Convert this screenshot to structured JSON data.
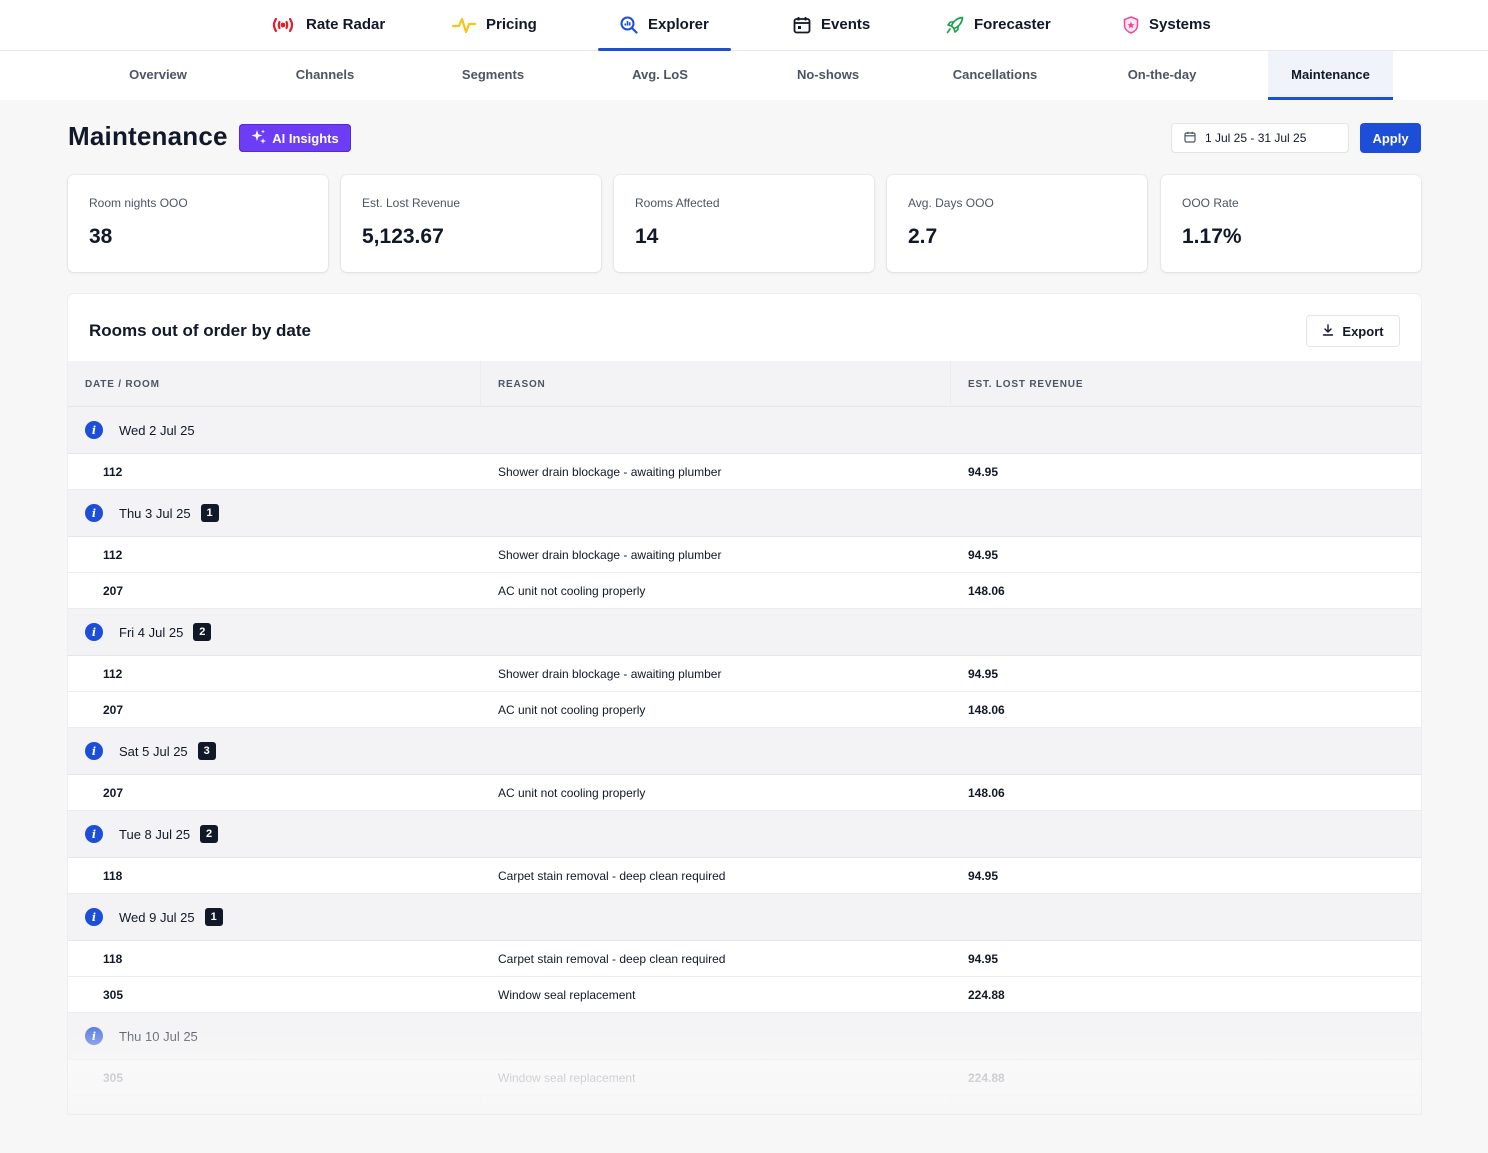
{
  "topnav": {
    "items": [
      {
        "label": "Rate Radar",
        "icon": "radar-icon",
        "color": "#e11d2e"
      },
      {
        "label": "Pricing",
        "icon": "pulse-icon",
        "color": "#f5c518"
      },
      {
        "label": "Explorer",
        "icon": "search-chart-icon",
        "color": "#1d4ed8",
        "active": true
      },
      {
        "label": "Events",
        "icon": "calendar-icon",
        "color": "#111827"
      },
      {
        "label": "Forecaster",
        "icon": "rocket-icon",
        "color": "#16a34a"
      },
      {
        "label": "Systems",
        "icon": "shield-icon",
        "color": "#ec4899"
      }
    ]
  },
  "subnav": {
    "items": [
      {
        "label": "Overview"
      },
      {
        "label": "Channels"
      },
      {
        "label": "Segments"
      },
      {
        "label": "Avg. LoS"
      },
      {
        "label": "No-shows"
      },
      {
        "label": "Cancellations"
      },
      {
        "label": "On-the-day"
      },
      {
        "label": "Maintenance",
        "active": true
      }
    ]
  },
  "header": {
    "title": "Maintenance",
    "ai_label": "AI Insights",
    "date_range": "1 Jul 25 - 31 Jul 25",
    "apply_label": "Apply"
  },
  "kpis": [
    {
      "label": "Room nights OOO",
      "value": "38"
    },
    {
      "label": "Est. Lost Revenue",
      "value": "5,123.67"
    },
    {
      "label": "Rooms Affected",
      "value": "14"
    },
    {
      "label": "Avg. Days OOO",
      "value": "2.7"
    },
    {
      "label": "OOO Rate",
      "value": "1.17%"
    }
  ],
  "table": {
    "title": "Rooms out of order by date",
    "export_label": "Export",
    "columns": [
      "DATE / ROOM",
      "REASON",
      "EST. LOST REVENUE"
    ],
    "groups": [
      {
        "date": "Wed 2 Jul 25",
        "badge": "",
        "rows": [
          {
            "room": "112",
            "reason": "Shower drain blockage - awaiting plumber",
            "revenue": "94.95"
          }
        ]
      },
      {
        "date": "Thu 3 Jul 25",
        "badge": "1",
        "rows": [
          {
            "room": "112",
            "reason": "Shower drain blockage - awaiting plumber",
            "revenue": "94.95"
          },
          {
            "room": "207",
            "reason": "AC unit not cooling properly",
            "revenue": "148.06"
          }
        ]
      },
      {
        "date": "Fri 4 Jul 25",
        "badge": "2",
        "rows": [
          {
            "room": "112",
            "reason": "Shower drain blockage - awaiting plumber",
            "revenue": "94.95"
          },
          {
            "room": "207",
            "reason": "AC unit not cooling properly",
            "revenue": "148.06"
          }
        ]
      },
      {
        "date": "Sat 5 Jul 25",
        "badge": "3",
        "rows": [
          {
            "room": "207",
            "reason": "AC unit not cooling properly",
            "revenue": "148.06"
          }
        ]
      },
      {
        "date": "Tue 8 Jul 25",
        "badge": "2",
        "rows": [
          {
            "room": "118",
            "reason": "Carpet stain removal - deep clean required",
            "revenue": "94.95"
          }
        ]
      },
      {
        "date": "Wed 9 Jul 25",
        "badge": "1",
        "rows": [
          {
            "room": "118",
            "reason": "Carpet stain removal - deep clean required",
            "revenue": "94.95"
          },
          {
            "room": "305",
            "reason": "Window seal replacement",
            "revenue": "224.88"
          }
        ]
      },
      {
        "date": "Thu 10 Jul 25",
        "badge": "",
        "rows": [
          {
            "room": "305",
            "reason": "Window seal replacement",
            "revenue": "224.88"
          }
        ]
      }
    ]
  }
}
